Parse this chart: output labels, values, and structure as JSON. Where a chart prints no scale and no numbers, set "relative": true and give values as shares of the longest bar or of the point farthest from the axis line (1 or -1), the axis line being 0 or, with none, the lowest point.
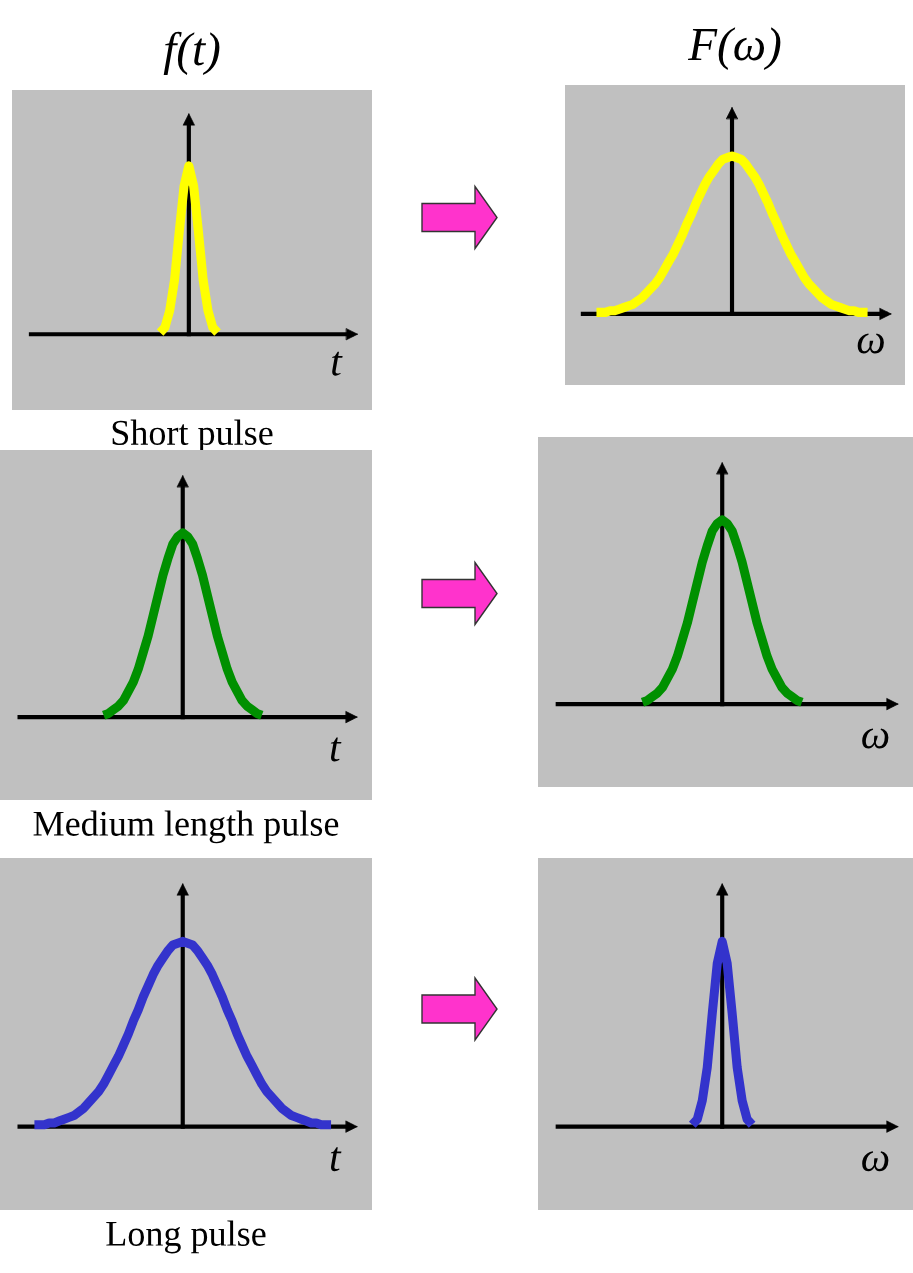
{
  "chart_data": [
    {
      "type": "line",
      "relative": true,
      "title": "f(t)",
      "xlabel": "t",
      "annotations": [
        "Short pulse"
      ],
      "categories": [
        null,
        null,
        null,
        null,
        null,
        null,
        null,
        null,
        null,
        null,
        null,
        null,
        null
      ],
      "series": [
        {
          "color": "#ffff00",
          "values": [
            0.01,
            0.04,
            0.14,
            0.32,
            0.61,
            0.88,
            1,
            0.88,
            0.61,
            0.32,
            0.14,
            0.04,
            0.01
          ]
        }
      ]
    },
    {
      "type": "line",
      "relative": true,
      "title": "F(ω)",
      "xlabel": "ω",
      "categories": [
        null,
        null,
        null,
        null,
        null,
        null,
        null,
        null,
        null,
        null,
        null,
        null,
        null,
        null,
        null,
        null,
        null,
        null,
        null,
        null,
        null,
        null,
        null,
        null,
        null,
        null,
        null,
        null,
        null,
        null,
        null,
        null,
        null,
        null,
        null,
        null,
        null,
        null,
        null,
        null,
        null,
        null,
        null,
        null,
        null,
        null,
        null,
        null,
        null,
        null,
        null,
        null,
        null,
        null,
        null,
        null,
        null,
        null,
        null,
        null,
        null
      ],
      "series": [
        {
          "color": "#ffff00",
          "values": [
            0.01,
            0.01,
            0.01,
            0.02,
            0.02,
            0.03,
            0.04,
            0.05,
            0.06,
            0.08,
            0.1,
            0.13,
            0.16,
            0.19,
            0.23,
            0.28,
            0.33,
            0.38,
            0.44,
            0.5,
            0.57,
            0.63,
            0.7,
            0.76,
            0.82,
            0.87,
            0.91,
            0.95,
            0.98,
            0.99,
            1,
            0.99,
            0.98,
            0.95,
            0.91,
            0.87,
            0.82,
            0.76,
            0.7,
            0.63,
            0.57,
            0.5,
            0.44,
            0.38,
            0.33,
            0.28,
            0.23,
            0.19,
            0.16,
            0.13,
            0.1,
            0.08,
            0.06,
            0.05,
            0.04,
            0.03,
            0.02,
            0.02,
            0.01,
            0.01,
            0.01
          ]
        }
      ]
    },
    {
      "type": "line",
      "relative": true,
      "xlabel": "t",
      "annotations": [
        "Medium length pulse"
      ],
      "categories": [
        null,
        null,
        null,
        null,
        null,
        null,
        null,
        null,
        null,
        null,
        null,
        null,
        null,
        null,
        null,
        null,
        null,
        null,
        null,
        null,
        null,
        null,
        null,
        null,
        null,
        null,
        null,
        null,
        null,
        null,
        null,
        null,
        null
      ],
      "series": [
        {
          "color": "#009000",
          "values": [
            0.01,
            0.02,
            0.04,
            0.06,
            0.09,
            0.14,
            0.19,
            0.26,
            0.35,
            0.44,
            0.55,
            0.66,
            0.77,
            0.86,
            0.94,
            0.98,
            1,
            0.98,
            0.94,
            0.86,
            0.77,
            0.66,
            0.55,
            0.44,
            0.35,
            0.26,
            0.19,
            0.14,
            0.09,
            0.06,
            0.04,
            0.02,
            0.01
          ]
        }
      ]
    },
    {
      "type": "line",
      "relative": true,
      "xlabel": "ω",
      "categories": [
        null,
        null,
        null,
        null,
        null,
        null,
        null,
        null,
        null,
        null,
        null,
        null,
        null,
        null,
        null,
        null,
        null,
        null,
        null,
        null,
        null,
        null,
        null,
        null,
        null,
        null,
        null,
        null,
        null,
        null,
        null,
        null,
        null
      ],
      "series": [
        {
          "color": "#009000",
          "values": [
            0.01,
            0.02,
            0.04,
            0.06,
            0.09,
            0.14,
            0.19,
            0.26,
            0.35,
            0.44,
            0.55,
            0.66,
            0.77,
            0.86,
            0.94,
            0.98,
            1,
            0.98,
            0.94,
            0.86,
            0.77,
            0.66,
            0.55,
            0.44,
            0.35,
            0.26,
            0.19,
            0.14,
            0.09,
            0.06,
            0.04,
            0.02,
            0.01
          ]
        }
      ]
    },
    {
      "type": "line",
      "relative": true,
      "xlabel": "t",
      "annotations": [
        "Long pulse"
      ],
      "categories": [
        null,
        null,
        null,
        null,
        null,
        null,
        null,
        null,
        null,
        null,
        null,
        null,
        null,
        null,
        null,
        null,
        null,
        null,
        null,
        null,
        null,
        null,
        null,
        null,
        null,
        null,
        null,
        null,
        null,
        null,
        null,
        null,
        null,
        null,
        null,
        null,
        null,
        null,
        null,
        null,
        null,
        null,
        null,
        null,
        null,
        null,
        null,
        null,
        null,
        null,
        null,
        null,
        null,
        null,
        null,
        null,
        null,
        null,
        null,
        null,
        null
      ],
      "series": [
        {
          "color": "#3333cc",
          "values": [
            0.01,
            0.01,
            0.01,
            0.02,
            0.02,
            0.03,
            0.04,
            0.05,
            0.06,
            0.08,
            0.1,
            0.13,
            0.16,
            0.19,
            0.23,
            0.28,
            0.33,
            0.38,
            0.44,
            0.5,
            0.57,
            0.63,
            0.7,
            0.76,
            0.82,
            0.87,
            0.91,
            0.95,
            0.98,
            0.99,
            1,
            0.99,
            0.98,
            0.95,
            0.91,
            0.87,
            0.82,
            0.76,
            0.7,
            0.63,
            0.57,
            0.5,
            0.44,
            0.38,
            0.33,
            0.28,
            0.23,
            0.19,
            0.16,
            0.13,
            0.1,
            0.08,
            0.06,
            0.05,
            0.04,
            0.03,
            0.02,
            0.02,
            0.01,
            0.01,
            0.01
          ]
        }
      ]
    },
    {
      "type": "line",
      "relative": true,
      "xlabel": "ω",
      "categories": [
        null,
        null,
        null,
        null,
        null,
        null,
        null,
        null,
        null,
        null,
        null,
        null,
        null
      ],
      "series": [
        {
          "color": "#3333cc",
          "values": [
            0.01,
            0.04,
            0.14,
            0.32,
            0.61,
            0.88,
            1,
            0.88,
            0.61,
            0.32,
            0.14,
            0.04,
            0.01
          ]
        }
      ]
    }
  ]
}
